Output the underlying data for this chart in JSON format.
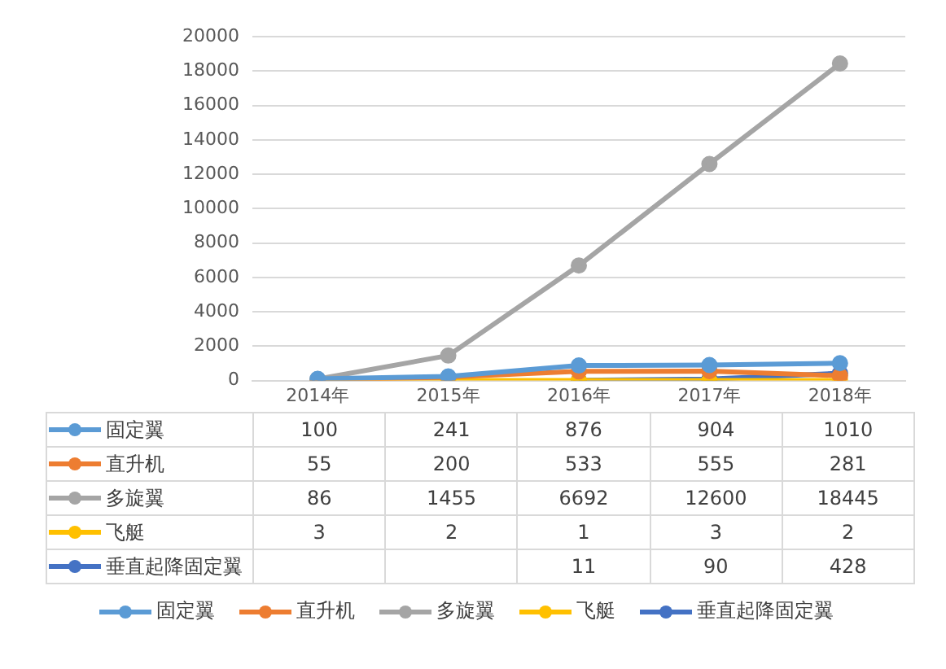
{
  "chart_data": {
    "type": "line",
    "categories": [
      "2014年",
      "2015年",
      "2016年",
      "2017年",
      "2018年"
    ],
    "series": [
      {
        "name": "固定翼",
        "color": "#5b9bd5",
        "values": [
          100,
          241,
          876,
          904,
          1010
        ]
      },
      {
        "name": "直升机",
        "color": "#ed7d31",
        "values": [
          55,
          200,
          533,
          555,
          281
        ]
      },
      {
        "name": "多旋翼",
        "color": "#a5a5a5",
        "values": [
          86,
          1455,
          6692,
          12600,
          18445
        ]
      },
      {
        "name": "飞艇",
        "color": "#ffc000",
        "values": [
          3,
          2,
          1,
          3,
          2
        ]
      },
      {
        "name": "垂直起降固定翼",
        "color": "#4472c4",
        "values": [
          null,
          null,
          11,
          90,
          428
        ]
      }
    ],
    "ylim": [
      0,
      20000
    ],
    "yticks": [
      0,
      2000,
      4000,
      6000,
      8000,
      10000,
      12000,
      14000,
      16000,
      18000,
      20000
    ],
    "grid": "y",
    "legend": "bottom",
    "marker": "circle",
    "line_style": "solid",
    "data_labels": true
  }
}
